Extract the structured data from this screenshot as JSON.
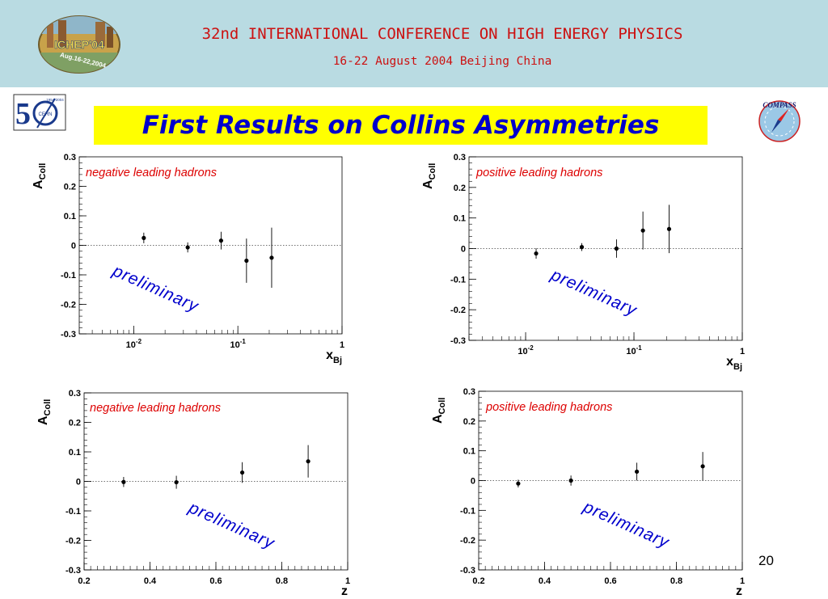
{
  "header": {
    "conference_title": "32nd INTERNATIONAL CONFERENCE ON HIGH ENERGY PHYSICS",
    "conference_subtitle": "16-22 August 2004 Beijing China",
    "ichep_logo_text": "ICHEP'04",
    "ichep_logo_subtext": "Aug.16-22,2004",
    "cern_logo_text": "CERN",
    "cern_logo_years": "1954-2004",
    "compass_logo_text": "COMPASS"
  },
  "slide": {
    "title": "First Results on Collins Asymmetries",
    "page_number": "20"
  },
  "colors": {
    "banner": "#b9dbe2",
    "title_highlight": "#ffff00",
    "title_text": "#0000cc",
    "panel_label": "#dd0000",
    "watermark": "#0000cc"
  },
  "chart_data": [
    {
      "type": "scatter",
      "panel_label": "negative leading hadrons",
      "watermark": "preliminary",
      "ylabel": "A",
      "ylabel_sub": "Coll",
      "xlabel": "x",
      "xlabel_sub": "Bj",
      "xscale": "log",
      "xlim": [
        0.003,
        1
      ],
      "ylim": [
        -0.3,
        0.3
      ],
      "xticks": [
        {
          "v": 0.01,
          "base": "10",
          "exp": "-2"
        },
        {
          "v": 0.1,
          "base": "10",
          "exp": "-1"
        },
        {
          "v": 1,
          "base": "1",
          "exp": ""
        }
      ],
      "yticks": [
        {
          "v": 0.3,
          "label": "0.3"
        },
        {
          "v": 0.2,
          "label": "0.2"
        },
        {
          "v": 0.1,
          "label": "0.1"
        },
        {
          "v": 0,
          "label": "0"
        },
        {
          "v": -0.1,
          "label": "-0.1"
        },
        {
          "v": -0.2,
          "label": "-0.2"
        },
        {
          "v": -0.3,
          "label": "-0.3"
        }
      ],
      "zero_line": true,
      "x": [
        0.0125,
        0.033,
        0.069,
        0.121,
        0.211
      ],
      "y": [
        0.025,
        -0.007,
        0.016,
        -0.052,
        -0.042
      ],
      "yerr": [
        0.018,
        0.017,
        0.03,
        0.075,
        0.102
      ]
    },
    {
      "type": "scatter",
      "panel_label": "positive leading hadrons",
      "watermark": "preliminary",
      "ylabel": "A",
      "ylabel_sub": "Coll",
      "xlabel": "x",
      "xlabel_sub": "Bj",
      "xscale": "log",
      "xlim": [
        0.003,
        1
      ],
      "ylim": [
        -0.3,
        0.3
      ],
      "xticks": [
        {
          "v": 0.01,
          "base": "10",
          "exp": "-2"
        },
        {
          "v": 0.1,
          "base": "10",
          "exp": "-1"
        },
        {
          "v": 1,
          "base": "1",
          "exp": ""
        }
      ],
      "yticks": [
        {
          "v": 0.3,
          "label": "0.3"
        },
        {
          "v": 0.2,
          "label": "0.2"
        },
        {
          "v": 0.1,
          "label": "0.1"
        },
        {
          "v": 0,
          "label": "0"
        },
        {
          "v": -0.1,
          "label": "-0.1"
        },
        {
          "v": -0.2,
          "label": "-0.2"
        },
        {
          "v": -0.3,
          "label": "-0.3"
        }
      ],
      "zero_line": true,
      "x": [
        0.0125,
        0.033,
        0.069,
        0.121,
        0.211
      ],
      "y": [
        -0.016,
        0.005,
        0.0,
        0.059,
        0.064
      ],
      "yerr": [
        0.017,
        0.013,
        0.03,
        0.062,
        0.079
      ]
    },
    {
      "type": "scatter",
      "panel_label": "negative leading hadrons",
      "watermark": "preliminary",
      "ylabel": "A",
      "ylabel_sub": "Coll",
      "xlabel": "z",
      "xlabel_sub": "",
      "xscale": "linear",
      "xlim": [
        0.2,
        1
      ],
      "ylim": [
        -0.3,
        0.3
      ],
      "xticks": [
        {
          "v": 0.2,
          "base": "0.2",
          "exp": ""
        },
        {
          "v": 0.4,
          "base": "0.4",
          "exp": ""
        },
        {
          "v": 0.6,
          "base": "0.6",
          "exp": ""
        },
        {
          "v": 0.8,
          "base": "0.8",
          "exp": ""
        },
        {
          "v": 1,
          "base": "1",
          "exp": ""
        }
      ],
      "yticks": [
        {
          "v": 0.3,
          "label": "0.3"
        },
        {
          "v": 0.2,
          "label": "0.2"
        },
        {
          "v": 0.1,
          "label": "0.1"
        },
        {
          "v": 0,
          "label": "0"
        },
        {
          "v": -0.1,
          "label": "-0.1"
        },
        {
          "v": -0.2,
          "label": "-0.2"
        },
        {
          "v": -0.3,
          "label": "-0.3"
        }
      ],
      "zero_line": true,
      "x": [
        0.32,
        0.48,
        0.68,
        0.88
      ],
      "y": [
        -0.002,
        -0.003,
        0.03,
        0.068
      ],
      "yerr": [
        0.017,
        0.022,
        0.035,
        0.055
      ]
    },
    {
      "type": "scatter",
      "panel_label": "positive leading hadrons",
      "watermark": "preliminary",
      "ylabel": "A",
      "ylabel_sub": "Coll",
      "xlabel": "z",
      "xlabel_sub": "",
      "xscale": "linear",
      "xlim": [
        0.2,
        1
      ],
      "ylim": [
        -0.3,
        0.3
      ],
      "xticks": [
        {
          "v": 0.2,
          "base": "0.2",
          "exp": ""
        },
        {
          "v": 0.4,
          "base": "0.4",
          "exp": ""
        },
        {
          "v": 0.6,
          "base": "0.6",
          "exp": ""
        },
        {
          "v": 0.8,
          "base": "0.8",
          "exp": ""
        },
        {
          "v": 1,
          "base": "1",
          "exp": ""
        }
      ],
      "yticks": [
        {
          "v": 0.3,
          "label": "0.3"
        },
        {
          "v": 0.2,
          "label": "0.2"
        },
        {
          "v": 0.1,
          "label": "0.1"
        },
        {
          "v": 0,
          "label": "0"
        },
        {
          "v": -0.1,
          "label": "-0.1"
        },
        {
          "v": -0.2,
          "label": "-0.2"
        },
        {
          "v": -0.3,
          "label": "-0.3"
        }
      ],
      "zero_line": true,
      "x": [
        0.32,
        0.48,
        0.68,
        0.88
      ],
      "y": [
        -0.01,
        0.0,
        0.03,
        0.048
      ],
      "yerr": [
        0.013,
        0.017,
        0.03,
        0.048
      ]
    }
  ]
}
